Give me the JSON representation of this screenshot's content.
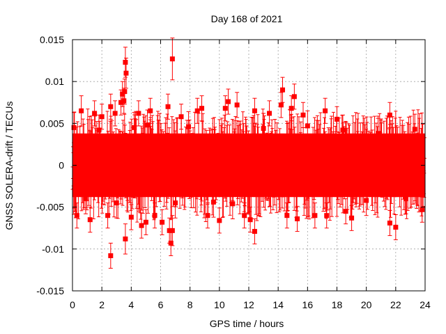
{
  "chart_data": {
    "type": "scatter",
    "title": "Day 168 of 2021",
    "xlabel": "GPS time / hours",
    "ylabel": "GNSS SOLERA-drift / TECUs",
    "xlim": [
      0,
      24
    ],
    "ylim": [
      -0.015,
      0.015
    ],
    "x_ticks": [
      "0",
      "2",
      "4",
      "6",
      "8",
      "10",
      "12",
      "14",
      "16",
      "18",
      "20",
      "22",
      "24"
    ],
    "y_ticks": [
      "0.015",
      "0.01",
      "0.005",
      "0",
      "-0.005",
      "-0.01",
      "-0.015"
    ],
    "grid": true,
    "marker": "square",
    "error_bars": true,
    "color": "#ff0000",
    "series": [
      {
        "points": [
          {
            "x": 0.1,
            "y": 0.0045,
            "err": 0.0018
          },
          {
            "x": 0.3,
            "y": -0.006,
            "err": 0.0015
          },
          {
            "x": 0.6,
            "y": 0.0065,
            "err": 0.0018
          },
          {
            "x": 1.2,
            "y": -0.0065,
            "err": 0.0015
          },
          {
            "x": 1.5,
            "y": 0.0062,
            "err": 0.0015
          },
          {
            "x": 2.0,
            "y": 0.0058,
            "err": 0.0015
          },
          {
            "x": 2.4,
            "y": -0.006,
            "err": 0.0015
          },
          {
            "x": 2.6,
            "y": -0.0108,
            "err": 0.0015
          },
          {
            "x": 2.6,
            "y": 0.007,
            "err": 0.0015
          },
          {
            "x": 2.9,
            "y": 0.0062,
            "err": 0.0015
          },
          {
            "x": 3.3,
            "y": 0.0075,
            "err": 0.0015
          },
          {
            "x": 3.4,
            "y": 0.0085,
            "err": 0.0015
          },
          {
            "x": 3.5,
            "y": 0.0077,
            "err": 0.0015
          },
          {
            "x": 3.55,
            "y": 0.0088,
            "err": 0.0015
          },
          {
            "x": 3.6,
            "y": 0.0123,
            "err": 0.0018
          },
          {
            "x": 3.65,
            "y": 0.011,
            "err": 0.0018
          },
          {
            "x": 3.6,
            "y": -0.0088,
            "err": 0.0018
          },
          {
            "x": 4.0,
            "y": -0.0062,
            "err": 0.0015
          },
          {
            "x": 4.5,
            "y": 0.0062,
            "err": 0.0015
          },
          {
            "x": 4.7,
            "y": -0.0072,
            "err": 0.0015
          },
          {
            "x": 5.0,
            "y": -0.0068,
            "err": 0.0015
          },
          {
            "x": 5.3,
            "y": 0.0065,
            "err": 0.0015
          },
          {
            "x": 5.6,
            "y": -0.006,
            "err": 0.0015
          },
          {
            "x": 6.1,
            "y": -0.0068,
            "err": 0.0015
          },
          {
            "x": 6.5,
            "y": 0.007,
            "err": 0.0015
          },
          {
            "x": 6.6,
            "y": -0.0078,
            "err": 0.0015
          },
          {
            "x": 6.7,
            "y": -0.0093,
            "err": 0.0015
          },
          {
            "x": 6.8,
            "y": -0.0078,
            "err": 0.0018
          },
          {
            "x": 6.8,
            "y": 0.0127,
            "err": 0.0025
          },
          {
            "x": 7.4,
            "y": 0.0058,
            "err": 0.0015
          },
          {
            "x": 8.5,
            "y": 0.0065,
            "err": 0.0015
          },
          {
            "x": 8.8,
            "y": 0.0068,
            "err": 0.0015
          },
          {
            "x": 9.2,
            "y": -0.006,
            "err": 0.0015
          },
          {
            "x": 10.0,
            "y": -0.0066,
            "err": 0.0015
          },
          {
            "x": 10.4,
            "y": 0.0068,
            "err": 0.0015
          },
          {
            "x": 10.6,
            "y": 0.0076,
            "err": 0.0015
          },
          {
            "x": 11.2,
            "y": 0.0072,
            "err": 0.0015
          },
          {
            "x": 11.7,
            "y": -0.006,
            "err": 0.0015
          },
          {
            "x": 12.1,
            "y": -0.0065,
            "err": 0.0015
          },
          {
            "x": 12.4,
            "y": -0.0079,
            "err": 0.0015
          },
          {
            "x": 12.4,
            "y": 0.0065,
            "err": 0.0015
          },
          {
            "x": 13.4,
            "y": 0.0062,
            "err": 0.0015
          },
          {
            "x": 14.2,
            "y": 0.0072,
            "err": 0.0015
          },
          {
            "x": 14.3,
            "y": 0.009,
            "err": 0.0015
          },
          {
            "x": 14.6,
            "y": -0.006,
            "err": 0.0015
          },
          {
            "x": 14.9,
            "y": 0.0068,
            "err": 0.0015
          },
          {
            "x": 15.1,
            "y": 0.0082,
            "err": 0.0015
          },
          {
            "x": 15.3,
            "y": -0.0064,
            "err": 0.0015
          },
          {
            "x": 15.7,
            "y": 0.006,
            "err": 0.0015
          },
          {
            "x": 16.5,
            "y": -0.006,
            "err": 0.0015
          },
          {
            "x": 17.2,
            "y": 0.0065,
            "err": 0.0015
          },
          {
            "x": 17.3,
            "y": -0.006,
            "err": 0.0015
          },
          {
            "x": 18.0,
            "y": 0.0055,
            "err": 0.0015
          },
          {
            "x": 18.6,
            "y": -0.0055,
            "err": 0.0015
          },
          {
            "x": 19.0,
            "y": -0.0063,
            "err": 0.0015
          },
          {
            "x": 21.6,
            "y": 0.006,
            "err": 0.0015
          },
          {
            "x": 21.6,
            "y": -0.0069,
            "err": 0.0015
          },
          {
            "x": 22.0,
            "y": -0.0074,
            "err": 0.0015
          },
          {
            "x": 23.8,
            "y": -0.0053,
            "err": 0.0015
          },
          {
            "x": 0.9,
            "y": -0.004,
            "err": 0.0018
          },
          {
            "x": 1.8,
            "y": 0.0042,
            "err": 0.0018
          },
          {
            "x": 3.0,
            "y": -0.0045,
            "err": 0.0018
          },
          {
            "x": 4.2,
            "y": 0.0045,
            "err": 0.0018
          },
          {
            "x": 5.1,
            "y": 0.0048,
            "err": 0.0018
          },
          {
            "x": 7.0,
            "y": -0.0045,
            "err": 0.0018
          },
          {
            "x": 7.9,
            "y": 0.0046,
            "err": 0.0018
          },
          {
            "x": 9.6,
            "y": -0.0044,
            "err": 0.0018
          },
          {
            "x": 10.9,
            "y": -0.0046,
            "err": 0.0018
          },
          {
            "x": 13.0,
            "y": 0.0044,
            "err": 0.0018
          },
          {
            "x": 16.0,
            "y": 0.0047,
            "err": 0.0018
          },
          {
            "x": 18.4,
            "y": 0.0042,
            "err": 0.0018
          },
          {
            "x": 20.0,
            "y": -0.0042,
            "err": 0.0018
          },
          {
            "x": 20.8,
            "y": 0.0038,
            "err": 0.0018
          },
          {
            "x": 22.7,
            "y": -0.004,
            "err": 0.0018
          },
          {
            "x": 23.3,
            "y": 0.0043,
            "err": 0.0018
          }
        ]
      }
    ]
  }
}
